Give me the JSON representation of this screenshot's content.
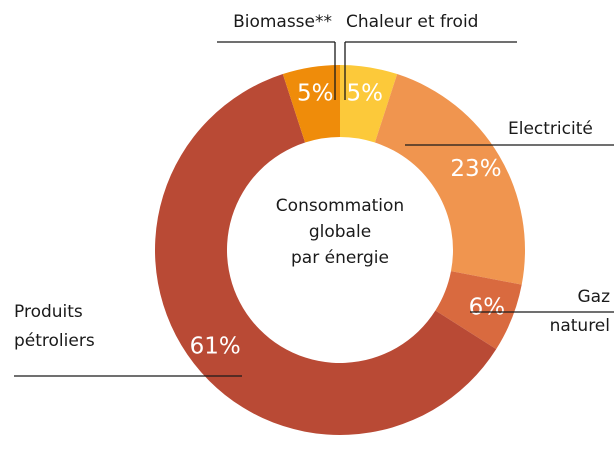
{
  "chart_data": {
    "type": "donut",
    "center_label": [
      "Consommation",
      "globale",
      "par énergie"
    ],
    "categories": [
      "Chaleur et froid",
      "Electricité",
      "Gaz naturel",
      "Produits pétroliers",
      "Biomasse**"
    ],
    "values": [
      5,
      23,
      6,
      61,
      5
    ],
    "value_labels": [
      "5%",
      "23%",
      "6%",
      "61%",
      "5%"
    ],
    "colors": [
      "#fcc93a",
      "#f0954f",
      "#d96a3f",
      "#b94a35",
      "#ef8c0a"
    ]
  }
}
